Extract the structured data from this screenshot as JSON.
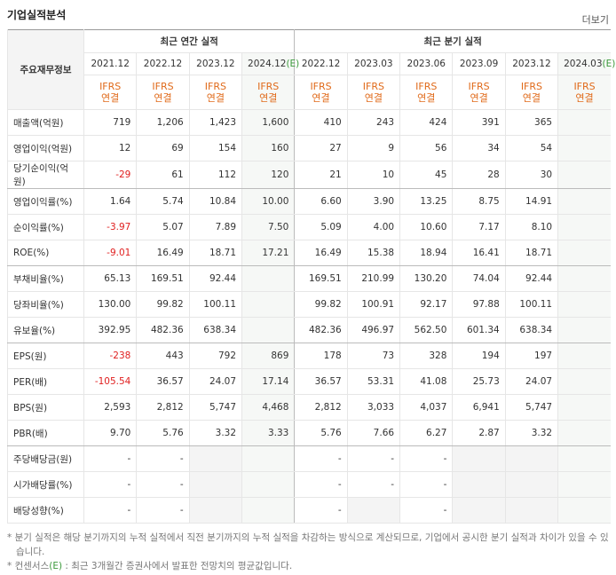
{
  "header": {
    "title": "기업실적분석",
    "more": "더보기"
  },
  "table": {
    "corner": "주요재무정보",
    "groups": [
      "최근 연간 실적",
      "최근 분기 실적"
    ],
    "periods": [
      {
        "date": "2021.12"
      },
      {
        "date": "2022.12"
      },
      {
        "date": "2023.12"
      },
      {
        "date": "2024.12",
        "mark": "(E)"
      },
      {
        "date": "2022.12"
      },
      {
        "date": "2023.03"
      },
      {
        "date": "2023.06"
      },
      {
        "date": "2023.09"
      },
      {
        "date": "2023.12"
      },
      {
        "date": "2024.03",
        "mark": "(E)"
      }
    ],
    "standard": "IFRS",
    "basis": "연결",
    "rows": [
      {
        "label": "매출액(억원)",
        "cells": [
          "719",
          "1,206",
          "1,423",
          "1,600",
          "410",
          "243",
          "424",
          "391",
          "365",
          null
        ]
      },
      {
        "label": "영업이익(억원)",
        "cells": [
          "12",
          "69",
          "154",
          "160",
          "27",
          "9",
          "56",
          "34",
          "54",
          null
        ]
      },
      {
        "label": "당기순이익(억원)",
        "cells": [
          "-29",
          "61",
          "112",
          "120",
          "21",
          "10",
          "45",
          "28",
          "30",
          null
        ]
      },
      {
        "label": "영업이익률(%)",
        "cells": [
          "1.64",
          "5.74",
          "10.84",
          "10.00",
          "6.60",
          "3.90",
          "13.25",
          "8.75",
          "14.91",
          null
        ]
      },
      {
        "label": "순이익률(%)",
        "cells": [
          "-3.97",
          "5.07",
          "7.89",
          "7.50",
          "5.09",
          "4.00",
          "10.60",
          "7.17",
          "8.10",
          null
        ]
      },
      {
        "label": "ROE(%)",
        "cells": [
          "-9.01",
          "16.49",
          "18.71",
          "17.21",
          "16.49",
          "15.38",
          "18.94",
          "16.41",
          "18.71",
          null
        ]
      },
      {
        "label": "부채비율(%)",
        "cells": [
          "65.13",
          "169.51",
          "92.44",
          null,
          "169.51",
          "210.99",
          "130.20",
          "74.04",
          "92.44",
          null
        ]
      },
      {
        "label": "당좌비율(%)",
        "cells": [
          "130.00",
          "99.82",
          "100.11",
          null,
          "99.82",
          "100.91",
          "92.17",
          "97.88",
          "100.11",
          null
        ]
      },
      {
        "label": "유보율(%)",
        "cells": [
          "392.95",
          "482.36",
          "638.34",
          null,
          "482.36",
          "496.97",
          "562.50",
          "601.34",
          "638.34",
          null
        ]
      },
      {
        "label": "EPS(원)",
        "cells": [
          "-238",
          "443",
          "792",
          "869",
          "178",
          "73",
          "328",
          "194",
          "197",
          null
        ]
      },
      {
        "label": "PER(배)",
        "cells": [
          "-105.54",
          "36.57",
          "24.07",
          "17.14",
          "36.57",
          "53.31",
          "41.08",
          "25.73",
          "24.07",
          null
        ]
      },
      {
        "label": "BPS(원)",
        "cells": [
          "2,593",
          "2,812",
          "5,747",
          "4,468",
          "2,812",
          "3,033",
          "4,037",
          "6,941",
          "5,747",
          null
        ]
      },
      {
        "label": "PBR(배)",
        "cells": [
          "9.70",
          "5.76",
          "3.32",
          "3.33",
          "5.76",
          "7.66",
          "6.27",
          "2.87",
          "3.32",
          null
        ]
      },
      {
        "label": "주당배당금(원)",
        "cells": [
          "-",
          "-",
          null,
          null,
          "-",
          "-",
          "-",
          null,
          null,
          null
        ]
      },
      {
        "label": "시가배당률(%)",
        "cells": [
          "-",
          "-",
          null,
          null,
          "-",
          "-",
          "-",
          null,
          null,
          null
        ]
      },
      {
        "label": "배당성향(%)",
        "cells": [
          "-",
          "-",
          null,
          null,
          "-",
          null,
          "-",
          null,
          null,
          null
        ]
      }
    ]
  },
  "notes": {
    "quarterly": "분기 실적은 해당 분기까지의 누적 실적에서 직전 분기까지의 누적 실적을 차감하는 방식으로 계산되므로, 기업에서 공시한 분기 실적과 차이가 있을 수 있습니다.",
    "consensus_term": "컨센서스",
    "consensus_mark": "(E)",
    "consensus_text": " : 최근 3개월간 증권사에서 발표한 전망치의 평균값입니다."
  }
}
